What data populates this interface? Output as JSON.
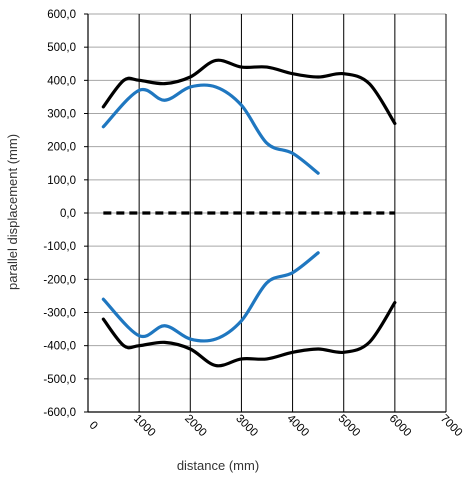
{
  "chart_data": {
    "type": "line",
    "title": "",
    "xlabel": "distance (mm)",
    "ylabel": "parallel displacement (mm)",
    "xlim": [
      0,
      7000
    ],
    "ylim": [
      -600,
      600
    ],
    "x_ticks": [
      0,
      1000,
      2000,
      3000,
      4000,
      5000,
      6000,
      7000
    ],
    "x_tick_labels": [
      "0",
      "1000",
      "2000",
      "3000",
      "4000",
      "5000",
      "6000",
      "7000"
    ],
    "y_ticks": [
      600,
      500,
      400,
      300,
      200,
      100,
      0,
      -100,
      -200,
      -300,
      -400,
      -500,
      -600
    ],
    "y_tick_labels": [
      "600,0",
      "500,0",
      "400,0",
      "300,0",
      "200,0",
      "100,0",
      "0,0",
      "-100,0",
      "-200,0",
      "-300,0",
      "-400,0",
      "-500,0",
      "-600,0"
    ],
    "grid": {
      "vertical": true,
      "horizontal": true
    },
    "legend": "none",
    "colors": {
      "black": "#000000",
      "blue": "#1f77c0",
      "grid_vertical": "#000000",
      "grid_horizontal": "#a6a6a6"
    },
    "series": [
      {
        "color": "#000000",
        "style": "solid",
        "x": [
          300,
          700,
          1000,
          1500,
          2000,
          2500,
          3000,
          3500,
          4000,
          4500,
          5000,
          5500,
          6000
        ],
        "values": [
          320,
          400,
          400,
          390,
          410,
          460,
          440,
          440,
          420,
          410,
          420,
          390,
          270
        ]
      },
      {
        "color": "#000000",
        "style": "solid",
        "x": [
          300,
          700,
          1000,
          1500,
          2000,
          2500,
          3000,
          3500,
          4000,
          4500,
          5000,
          5500,
          6000
        ],
        "values": [
          -320,
          -400,
          -400,
          -390,
          -410,
          -460,
          -440,
          -440,
          -420,
          -410,
          -420,
          -390,
          -270
        ]
      },
      {
        "color": "#1f77c0",
        "style": "solid",
        "x": [
          300,
          1000,
          1500,
          2000,
          2500,
          3000,
          3500,
          4000,
          4500
        ],
        "values": [
          260,
          370,
          340,
          380,
          380,
          325,
          210,
          180,
          120
        ]
      },
      {
        "color": "#1f77c0",
        "style": "solid",
        "x": [
          300,
          1000,
          1500,
          2000,
          2500,
          3000,
          3500,
          4000,
          4500
        ],
        "values": [
          -260,
          -370,
          -340,
          -380,
          -380,
          -325,
          -210,
          -180,
          -120
        ]
      },
      {
        "color": "#000000",
        "style": "dashed",
        "x": [
          300,
          6000
        ],
        "values": [
          0,
          0
        ]
      }
    ]
  }
}
